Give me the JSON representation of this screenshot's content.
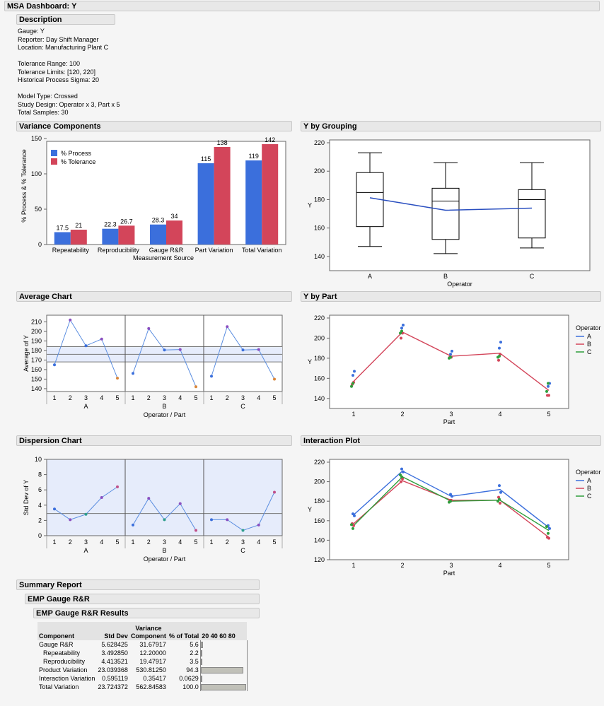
{
  "dashboard_title": "MSA Dashboard: Y",
  "description": {
    "header": "Description",
    "lines": [
      "Gauge: Y",
      "Reporter: Day Shift Manager",
      "Location: Manufacturing Plant C",
      "",
      "Tolerance Range: 100",
      "Tolerance Limits: [120, 220]",
      "Historical Process Sigma: 20",
      "",
      "Model Type: Crossed",
      "Study Design: Operator x 3, Part x 5",
      "Total Samples: 30"
    ]
  },
  "sections": {
    "variance_components": "Variance Components",
    "y_by_grouping": "Y by Grouping",
    "average_chart": "Average Chart",
    "y_by_part": "Y by Part",
    "dispersion_chart": "Dispersion Chart",
    "interaction_plot": "Interaction Plot",
    "summary_report": "Summary Report",
    "emp_gauge_rr": "EMP Gauge R&R",
    "emp_gauge_rr_results": "EMP Gauge R&R Results"
  },
  "colors": {
    "blue": "#3b6fdc",
    "red": "#d3455a",
    "green": "#2e9e3c",
    "purple": "#8a4fc0",
    "orange": "#d9863a",
    "limit_band": "#e6ecfb"
  },
  "chart_data": [
    {
      "id": "variance_components",
      "type": "bar",
      "categories": [
        "Repeatability",
        "Reproducibility",
        "Gauge R&R",
        "Part Variation",
        "Total Variation"
      ],
      "series": [
        {
          "name": "% Process",
          "values": [
            17.5,
            22.3,
            28.3,
            115,
            119
          ]
        },
        {
          "name": "% Tolerance",
          "values": [
            21,
            26.7,
            34,
            138,
            142
          ]
        }
      ],
      "labels": [
        [
          "17.5",
          "22.3",
          "28.3",
          "115",
          "119"
        ],
        [
          "21",
          "26.7",
          "34",
          "138",
          "142"
        ]
      ],
      "xlabel": "Measurement Source",
      "ylabel": "% Process & % Tolerance",
      "ylim": [
        0,
        150
      ],
      "yticks": [
        0,
        50,
        100,
        150
      ],
      "legend": "top-left"
    },
    {
      "id": "y_by_grouping",
      "type": "box",
      "categories": [
        "A",
        "B",
        "C"
      ],
      "boxes": [
        {
          "min": 147,
          "q1": 161,
          "median": 185,
          "q3": 199,
          "max": 213
        },
        {
          "min": 142,
          "q1": 152,
          "median": 179,
          "q3": 188,
          "max": 206
        },
        {
          "min": 146,
          "q1": 153,
          "median": 180,
          "q3": 187,
          "max": 206
        }
      ],
      "means": [
        181.3,
        172.5,
        174
      ],
      "xlabel": "Operator",
      "ylabel": "Y",
      "ylim": [
        130,
        220
      ],
      "yticks": [
        140,
        160,
        180,
        200,
        220
      ]
    },
    {
      "id": "average_chart",
      "type": "line",
      "groups": [
        "A",
        "B",
        "C"
      ],
      "parts": [
        "1",
        "2",
        "3",
        "4",
        "5"
      ],
      "values": [
        [
          165,
          212,
          185,
          192,
          151
        ],
        [
          156,
          203,
          180.5,
          181,
          142
        ],
        [
          153,
          205,
          180.5,
          181,
          150
        ]
      ],
      "center": 176,
      "ucl": 184,
      "lcl": 168,
      "xlabel": "Operator  /  Part",
      "ylabel": "Average of Y",
      "ylim": [
        137,
        217
      ],
      "yticks": [
        140,
        150,
        160,
        170,
        180,
        190,
        200,
        210
      ]
    },
    {
      "id": "y_by_part",
      "type": "line",
      "x": [
        "1",
        "2",
        "3",
        "4",
        "5"
      ],
      "series": [
        {
          "name": "B",
          "values": [
            157,
            206,
            182,
            185,
            148
          ]
        }
      ],
      "points": {
        "A": [
          [
            163,
            167
          ],
          [
            210,
            213
          ],
          [
            184,
            187
          ],
          [
            190,
            196
          ],
          [
            152,
            155
          ]
        ],
        "B": [
          [
            154,
            156
          ],
          [
            200,
            205
          ],
          [
            181,
            181
          ],
          [
            178,
            184
          ],
          [
            143,
            143
          ]
        ],
        "C": [
          [
            152,
            155
          ],
          [
            205,
            207
          ],
          [
            180,
            181
          ],
          [
            181,
            182
          ],
          [
            147,
            155
          ]
        ]
      },
      "legend_title": "Operator",
      "legend": [
        "A",
        "B",
        "C"
      ],
      "xlabel": "Part",
      "ylabel": "Y",
      "ylim": [
        130,
        220
      ],
      "yticks": [
        140,
        160,
        180,
        200,
        220
      ]
    },
    {
      "id": "dispersion_chart",
      "type": "line",
      "groups": [
        "A",
        "B",
        "C"
      ],
      "parts": [
        "1",
        "2",
        "3",
        "4",
        "5"
      ],
      "values": [
        [
          3.5,
          2.1,
          2.8,
          5.0,
          6.4
        ],
        [
          1.4,
          4.9,
          2.1,
          4.2,
          0.7
        ],
        [
          2.1,
          2.1,
          0.7,
          1.4,
          5.7
        ]
      ],
      "center": 2.9,
      "ylabel": "Std Dev of Y",
      "xlabel": "Operator  /  Part",
      "ylim": [
        0,
        10
      ],
      "yticks": [
        0,
        2,
        4,
        6,
        8,
        10
      ]
    },
    {
      "id": "interaction_plot",
      "type": "line",
      "x": [
        "1",
        "2",
        "3",
        "4",
        "5"
      ],
      "series": [
        {
          "name": "A",
          "values": [
            166,
            211,
            185,
            192,
            153
          ]
        },
        {
          "name": "B",
          "values": [
            157,
            201,
            181,
            181,
            143
          ]
        },
        {
          "name": "C",
          "values": [
            155,
            205,
            180,
            181,
            150
          ]
        }
      ],
      "points": {
        "A": [
          [
            167,
            165
          ],
          [
            213,
            210
          ],
          [
            187,
            185
          ],
          [
            196,
            189
          ],
          [
            155,
            152
          ]
        ],
        "B": [
          [
            157,
            155
          ],
          [
            200,
            203
          ],
          [
            181,
            181
          ],
          [
            184,
            178
          ],
          [
            143,
            142
          ]
        ],
        "C": [
          [
            156,
            152
          ],
          [
            207,
            205
          ],
          [
            179,
            180
          ],
          [
            180,
            182
          ],
          [
            154,
            147
          ]
        ]
      },
      "legend_title": "Operator",
      "legend": [
        "A",
        "B",
        "C"
      ],
      "xlabel": "Part",
      "ylabel": "Y",
      "ylim": [
        120,
        220
      ],
      "yticks": [
        120,
        140,
        160,
        180,
        200,
        220
      ]
    },
    {
      "id": "gauge_rr_results",
      "type": "table",
      "columns": [
        "Component",
        "Std Dev",
        "Variance Component",
        "% of Total",
        "20 40 60 80"
      ],
      "rows": [
        {
          "component": "Gauge R&R",
          "std_dev": "5.628425",
          "variance": "31.67917",
          "pct": "5.6",
          "bar": 5.6,
          "indent": false
        },
        {
          "component": "Repeatability",
          "std_dev": "3.492850",
          "variance": "12.20000",
          "pct": "2.2",
          "bar": 2.2,
          "indent": true
        },
        {
          "component": "Reproducibility",
          "std_dev": "4.413521",
          "variance": "19.47917",
          "pct": "3.5",
          "bar": 3.5,
          "indent": true
        },
        {
          "component": "Product Variation",
          "std_dev": "23.039368",
          "variance": "530.81250",
          "pct": "94.3",
          "bar": 94.3,
          "indent": false
        },
        {
          "component": "Interaction Variation",
          "std_dev": "0.595119",
          "variance": "0.35417",
          "pct": "0.0629",
          "bar": 0.0629,
          "indent": false
        },
        {
          "component": "Total Variation",
          "std_dev": "23.724372",
          "variance": "562.84583",
          "pct": "100.0",
          "bar": 100,
          "indent": false
        }
      ]
    }
  ]
}
